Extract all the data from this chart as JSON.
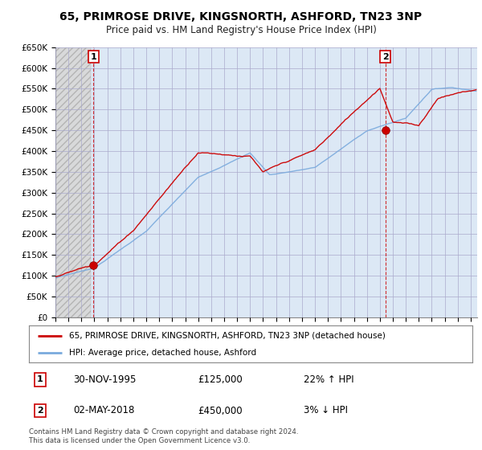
{
  "title": "65, PRIMROSE DRIVE, KINGSNORTH, ASHFORD, TN23 3NP",
  "subtitle": "Price paid vs. HM Land Registry's House Price Index (HPI)",
  "ylabel_ticks": [
    "£0",
    "£50K",
    "£100K",
    "£150K",
    "£200K",
    "£250K",
    "£300K",
    "£350K",
    "£400K",
    "£450K",
    "£500K",
    "£550K",
    "£600K",
    "£650K"
  ],
  "ylim": [
    0,
    650000
  ],
  "ytick_vals": [
    0,
    50000,
    100000,
    150000,
    200000,
    250000,
    300000,
    350000,
    400000,
    450000,
    500000,
    550000,
    600000,
    650000
  ],
  "xlim_start": 1993,
  "xlim_end": 2025.5,
  "hatch_end": 1995.75,
  "point1_x": 1995.92,
  "point1_y": 125000,
  "point2_x": 2018.42,
  "point2_y": 450000,
  "legend_line1": "65, PRIMROSE DRIVE, KINGSNORTH, ASHFORD, TN23 3NP (detached house)",
  "legend_line2": "HPI: Average price, detached house, Ashford",
  "annotation1_date": "30-NOV-1995",
  "annotation1_price": "£125,000",
  "annotation1_hpi": "22% ↑ HPI",
  "annotation2_date": "02-MAY-2018",
  "annotation2_price": "£450,000",
  "annotation2_hpi": "3% ↓ HPI",
  "footer": "Contains HM Land Registry data © Crown copyright and database right 2024.\nThis data is licensed under the Open Government Licence v3.0.",
  "line_color_price": "#cc0000",
  "line_color_hpi": "#7aaadd",
  "bg_color": "#dce8f5",
  "hatch_color": "#c8c8c8",
  "grid_color": "#aaaacc"
}
